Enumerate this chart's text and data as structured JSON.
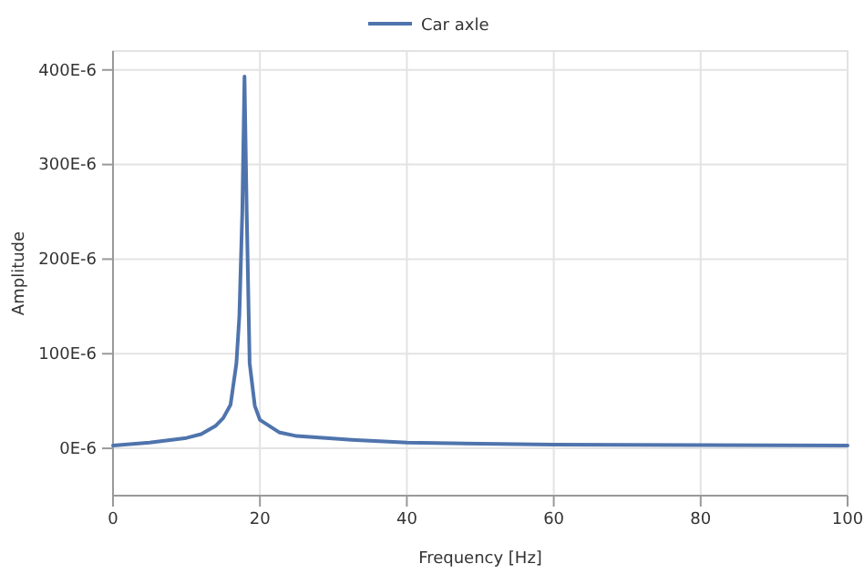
{
  "chart_data": {
    "type": "line",
    "xlabel": "Frequency [Hz]",
    "ylabel": "Amplitude",
    "xlim": [
      0,
      100
    ],
    "xticks": [
      0,
      20,
      40,
      60,
      80,
      100
    ],
    "ylim": [
      -5e-05,
      0.00042
    ],
    "yticks": [
      {
        "value": 0,
        "label": "0E-6"
      },
      {
        "value": 0.0001,
        "label": "100E-6"
      },
      {
        "value": 0.0002,
        "label": "200E-6"
      },
      {
        "value": 0.0003,
        "label": "300E-6"
      },
      {
        "value": 0.0004,
        "label": "400E-6"
      }
    ],
    "grid": true,
    "legend": "top",
    "series": [
      {
        "name": "Car axle",
        "color": "#4f74ad",
        "x": [
          0,
          5,
          10,
          12,
          14,
          15,
          16,
          16.8,
          17.2,
          17.6,
          17.9,
          18.2,
          18.6,
          19.3,
          20,
          22.6,
          25,
          32.5,
          40,
          60,
          80,
          100
        ],
        "values": [
          3e-06,
          6e-06,
          1.1e-05,
          1.5e-05,
          2.4e-05,
          3.2e-05,
          4.6e-05,
          9e-05,
          0.00014,
          0.00025,
          0.000393,
          0.00025,
          9e-05,
          4.5e-05,
          3e-05,
          1.7e-05,
          1.3e-05,
          9e-06,
          6e-06,
          4e-06,
          3.5e-06,
          3e-06
        ]
      }
    ]
  }
}
